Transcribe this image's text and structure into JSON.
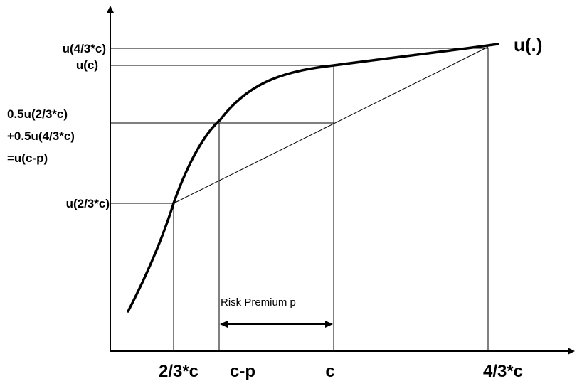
{
  "curve_label": "u(.)",
  "y_labels": {
    "u_high": "u(4/3*c)",
    "u_c": "u(c)",
    "mix_line1": "0.5u(2/3*c)",
    "mix_line2": "+0.5u(4/3*c)",
    "mix_line3": "=u(c-p)",
    "u_low": "u(2/3*c)"
  },
  "x_labels": {
    "low": "2/3*c",
    "cp": "c-p",
    "c": "c",
    "high": "4/3*c"
  },
  "risk_premium_label": "Risk Premium p"
}
